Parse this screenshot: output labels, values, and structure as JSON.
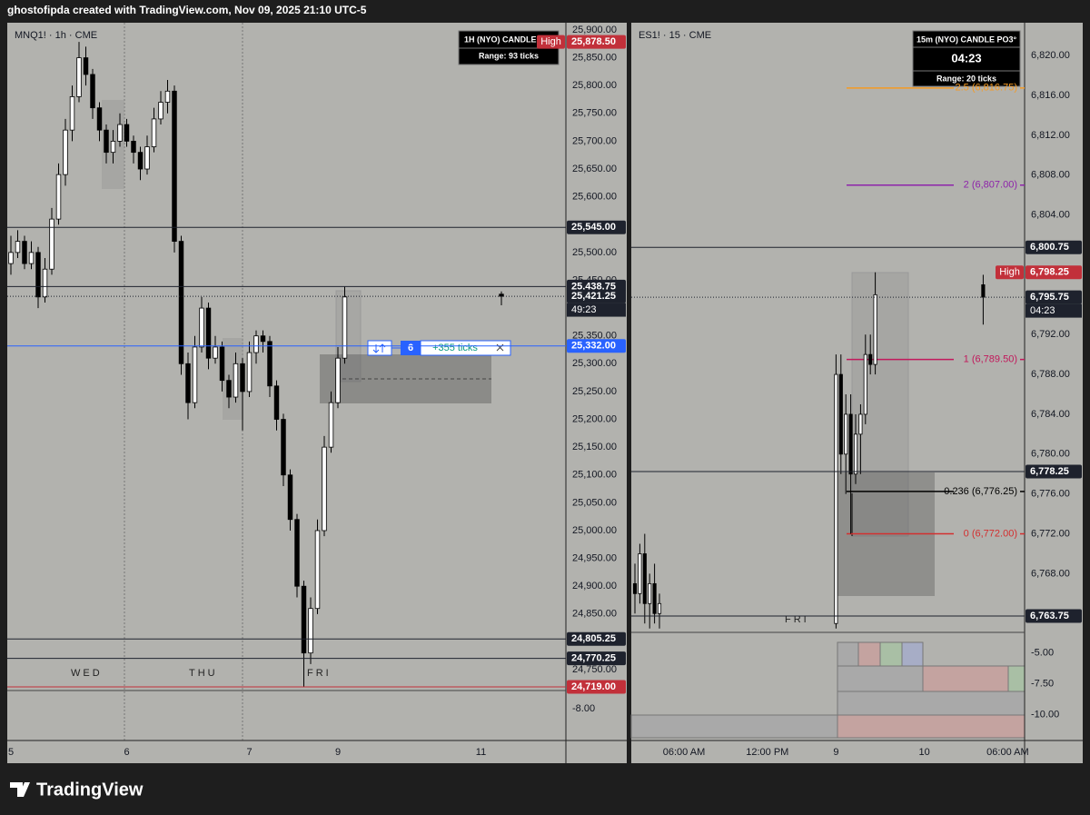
{
  "header": "ghostofipda created with TradingView.com, Nov 09, 2025 21:10 UTC-5",
  "footer": "TradingView",
  "chart_data": [
    {
      "type": "candlestick",
      "title": "MNQ1! · 1h · CME",
      "categories": [
        "5",
        null,
        null,
        null,
        null,
        null,
        null,
        null,
        null,
        null,
        null,
        null,
        null,
        null,
        null,
        null,
        null,
        "6",
        null,
        null,
        null,
        null,
        null,
        null,
        null,
        null,
        null,
        null,
        null,
        null,
        null,
        null,
        null,
        null,
        null,
        "7",
        null,
        null,
        null,
        null,
        null,
        null,
        null,
        null,
        null,
        null,
        null,
        null,
        "9",
        null,
        null,
        null,
        null,
        null,
        null,
        null,
        null,
        null,
        null,
        null,
        null,
        null,
        null,
        null,
        null,
        null,
        null,
        null,
        null,
        "11",
        null,
        null,
        null
      ],
      "ohlc": [
        [
          25480,
          25530,
          25460,
          25500
        ],
        [
          25500,
          25540,
          25490,
          25520
        ],
        [
          25520,
          25530,
          25470,
          25480
        ],
        [
          25480,
          25520,
          25470,
          25500
        ],
        [
          25500,
          25510,
          25400,
          25420
        ],
        [
          25420,
          25490,
          25410,
          25470
        ],
        [
          25470,
          25580,
          25460,
          25560
        ],
        [
          25560,
          25660,
          25550,
          25640
        ],
        [
          25640,
          25740,
          25620,
          25720
        ],
        [
          25720,
          25800,
          25700,
          25780
        ],
        [
          25780,
          25878.5,
          25770,
          25850
        ],
        [
          25850,
          25870,
          25800,
          25820
        ],
        [
          25820,
          25830,
          25740,
          25760
        ],
        [
          25760,
          25770,
          25700,
          25720
        ],
        [
          25720,
          25730,
          25660,
          25680
        ],
        [
          25680,
          25720,
          25660,
          25700
        ],
        [
          25700,
          25750,
          25690,
          25730
        ],
        [
          25730,
          25740,
          25690,
          25700
        ],
        [
          25700,
          25710,
          25660,
          25680
        ],
        [
          25680,
          25690,
          25630,
          25650
        ],
        [
          25650,
          25710,
          25640,
          25690
        ],
        [
          25690,
          25760,
          25680,
          25740
        ],
        [
          25740,
          25790,
          25730,
          25770
        ],
        [
          25770,
          25810,
          25750,
          25790
        ],
        [
          25790,
          25800,
          25500,
          25520
        ],
        [
          25520,
          25530,
          25280,
          25300
        ],
        [
          25300,
          25320,
          25200,
          25230
        ],
        [
          25230,
          25350,
          25220,
          25330
        ],
        [
          25330,
          25420,
          25320,
          25400
        ],
        [
          25400,
          25410,
          25290,
          25310
        ],
        [
          25310,
          25350,
          25300,
          25330
        ],
        [
          25330,
          25340,
          25250,
          25270
        ],
        [
          25270,
          25280,
          25220,
          25240
        ],
        [
          25240,
          25320,
          25230,
          25300
        ],
        [
          25300,
          25310,
          25180,
          25250
        ],
        [
          25250,
          25340,
          25240,
          25320
        ],
        [
          25320,
          25360,
          25300,
          25350
        ],
        [
          25350,
          25360,
          25320,
          25340
        ],
        [
          25340,
          25350,
          25240,
          25260
        ],
        [
          25260,
          25270,
          25180,
          25200
        ],
        [
          25200,
          25210,
          25080,
          25100
        ],
        [
          25100,
          25110,
          25000,
          25020
        ],
        [
          25020,
          25030,
          24880,
          24900
        ],
        [
          24900,
          24910,
          24719,
          24780
        ],
        [
          24780,
          24880,
          24760,
          24860
        ],
        [
          24860,
          25020,
          24850,
          25000
        ],
        [
          25000,
          25170,
          24990,
          25150
        ],
        [
          25150,
          25250,
          25140,
          25230
        ],
        [
          25230,
          25330,
          25220,
          25310
        ],
        [
          25310,
          25438.75,
          25300,
          25420
        ],
        null,
        null,
        null,
        null,
        null,
        null,
        null,
        null,
        null,
        null,
        null,
        null,
        null,
        null,
        null,
        null,
        null,
        null,
        null,
        null,
        null,
        null,
        [
          25425,
          25430,
          25405,
          25421.25
        ]
      ],
      "up_color": "#ffffff",
      "down_color": "#000000",
      "ylim": [
        24712.5,
        25913
      ],
      "yticks": [
        {
          "value": 25900,
          "label": "25,900.00"
        },
        {
          "value": 25850,
          "label": "25,850.00"
        },
        {
          "value": 25800,
          "label": "25,800.00"
        },
        {
          "value": 25750,
          "label": "25,750.00"
        },
        {
          "value": 25700,
          "label": "25,700.00"
        },
        {
          "value": 25650,
          "label": "25,650.00"
        },
        {
          "value": 25600,
          "label": "25,600.00"
        },
        {
          "value": 25500,
          "label": "25,500.00"
        },
        {
          "value": 25450,
          "label": "25,450.00"
        },
        {
          "value": 25350,
          "label": "25,350.00"
        },
        {
          "value": 25300,
          "label": "25,300.00"
        },
        {
          "value": 25250,
          "label": "25,250.00"
        },
        {
          "value": 25200,
          "label": "25,200.00"
        },
        {
          "value": 25150,
          "label": "25,150.00"
        },
        {
          "value": 25100,
          "label": "25,100.00"
        },
        {
          "value": 25050,
          "label": "25,050.00"
        },
        {
          "value": 25000,
          "label": "25,000.00"
        },
        {
          "value": 24950,
          "label": "24,950.00"
        },
        {
          "value": 24900,
          "label": "24,900.00"
        },
        {
          "value": 24850,
          "label": "24,850.00"
        },
        {
          "value": 24750,
          "label": "24,750.00"
        }
      ],
      "grid": false,
      "levels": [
        {
          "value": 25878.5,
          "label": "25,878.50",
          "tag": "High",
          "color": "#c2303a"
        },
        {
          "value": 25545,
          "label": "25,545.00",
          "color": "#1e222d"
        },
        {
          "value": 25438.75,
          "label": "25,438.75",
          "color": "#1e222d"
        },
        {
          "value": 25421.25,
          "label": "25,421.25",
          "countdown": "49:23",
          "color": "#1e222d",
          "dotted": true
        },
        {
          "value": 25332,
          "label": "25,332.00",
          "color": "#2962ff"
        },
        {
          "value": 24805.25,
          "label": "24,805.25",
          "color": "#1e222d"
        },
        {
          "value": 24770.25,
          "label": "24,770.25",
          "color": "#1e222d"
        },
        {
          "value": 24719,
          "label": "24,719.00",
          "color": "#c2303a"
        }
      ],
      "sessions": [
        "WED",
        "THU",
        "FRI"
      ],
      "widget": {
        "title": "1H (NYO) CANDLE P",
        "range": "Range: 93 ticks"
      },
      "measure": {
        "bars": "6",
        "ticks": "+355 ticks"
      },
      "sub_ylim": [
        -12.2,
        -5.6
      ],
      "sub_yticks": [
        {
          "value": -8,
          "label": "-8.00"
        }
      ]
    },
    {
      "type": "candlestick",
      "title": "ES1! · 15 · CME",
      "categories": [
        null,
        null,
        null,
        null,
        null,
        null,
        null,
        null,
        null,
        null,
        "06:00 AM",
        null,
        null,
        null,
        null,
        null,
        null,
        null,
        null,
        null,
        null,
        null,
        null,
        null,
        null,
        null,
        null,
        "12:00 PM",
        null,
        null,
        null,
        null,
        null,
        null,
        null,
        null,
        null,
        null,
        null,
        null,
        null,
        "9",
        null,
        null,
        null,
        null,
        null,
        null,
        null,
        null,
        null,
        null,
        null,
        null,
        null,
        null,
        null,
        null,
        null,
        "10",
        null,
        null,
        null,
        null,
        null,
        null,
        null,
        null,
        null,
        null,
        null,
        null,
        null,
        null,
        null,
        null,
        "06:00 AM"
      ],
      "ohlc": [
        [
          6767,
          6769,
          6764,
          6766
        ],
        [
          6766,
          6771,
          6765,
          6770
        ],
        [
          6770,
          6772,
          6763,
          6765
        ],
        [
          6765,
          6768,
          6762.5,
          6767
        ],
        [
          6767,
          6769,
          6763,
          6764
        ],
        [
          6764,
          6766,
          6762.5,
          6765
        ],
        null,
        null,
        null,
        null,
        null,
        null,
        null,
        null,
        null,
        null,
        null,
        null,
        null,
        null,
        null,
        null,
        null,
        null,
        null,
        null,
        null,
        null,
        null,
        null,
        null,
        null,
        null,
        null,
        null,
        null,
        null,
        null,
        null,
        null,
        null,
        [
          6763,
          6790,
          6762.5,
          6788
        ],
        [
          6788,
          6790,
          6778,
          6780
        ],
        [
          6780,
          6786,
          6776,
          6784
        ],
        [
          6784,
          6786,
          6772,
          6778
        ],
        [
          6778,
          6784,
          6777,
          6782
        ],
        [
          6782,
          6785,
          6778,
          6784
        ],
        [
          6784,
          6792,
          6783,
          6790
        ],
        [
          6790,
          6792,
          6788,
          6789
        ],
        [
          6789,
          6798.25,
          6788,
          6796
        ],
        null,
        null,
        null,
        null,
        null,
        null,
        null,
        null,
        null,
        null,
        null,
        null,
        null,
        null,
        null,
        null,
        null,
        null,
        null,
        null,
        null,
        [
          6797,
          6798,
          6793,
          6795.75
        ],
        null,
        null,
        null,
        null,
        null
      ],
      "up_color": "#ffffff",
      "down_color": "#000000",
      "ylim": [
        6762.2,
        6823.3
      ],
      "yticks": [
        {
          "value": 6820,
          "label": "6,820.00"
        },
        {
          "value": 6816,
          "label": "6,816.00"
        },
        {
          "value": 6812,
          "label": "6,812.00"
        },
        {
          "value": 6808,
          "label": "6,808.00"
        },
        {
          "value": 6804,
          "label": "6,804.00"
        },
        {
          "value": 6792,
          "label": "6,792.00"
        },
        {
          "value": 6788,
          "label": "6,788.00"
        },
        {
          "value": 6784,
          "label": "6,784.00"
        },
        {
          "value": 6780,
          "label": "6,780.00"
        },
        {
          "value": 6776,
          "label": "6,776.00"
        },
        {
          "value": 6772,
          "label": "6,772.00"
        },
        {
          "value": 6768,
          "label": "6,768.00"
        }
      ],
      "grid": false,
      "levels": [
        {
          "value": 6800.75,
          "label": "6,800.75",
          "color": "#1e222d"
        },
        {
          "value": 6798.25,
          "label": "6,798.25",
          "tag": "High",
          "color": "#c2303a"
        },
        {
          "value": 6795.75,
          "label": "6,795.75",
          "countdown": "04:23",
          "color": "#1e222d",
          "dotted": true
        },
        {
          "value": 6778.25,
          "label": "6,778.25",
          "color": "#1e222d"
        },
        {
          "value": 6763.75,
          "label": "6,763.75",
          "color": "#1e222d"
        }
      ],
      "fib": [
        {
          "value": 6816.75,
          "label": "2.5 (6,816.75)",
          "color": "#f59a23"
        },
        {
          "value": 6807,
          "label": "2 (6,807.00)",
          "color": "#8e24aa"
        },
        {
          "value": 6789.5,
          "label": "1 (6,789.50)",
          "color": "#c2185b"
        },
        {
          "value": 6776.25,
          "label": "0.236 (6,776.25)",
          "color": "#000000"
        },
        {
          "value": 6772,
          "label": "0 (6,772.00)",
          "color": "#d32f2f"
        }
      ],
      "sessions": [
        "FRI"
      ],
      "widget": {
        "title": "15m (NYO) CANDLE PO3°",
        "timer": "04:23",
        "range": "Range: 20 ticks"
      },
      "sub_ylim": [
        -11.87,
        -3.28
      ],
      "sub_yticks": [
        {
          "value": -5,
          "label": "-5.00"
        },
        {
          "value": -7.5,
          "label": "-7.50"
        },
        {
          "value": -10,
          "label": "-10.00"
        }
      ]
    }
  ]
}
